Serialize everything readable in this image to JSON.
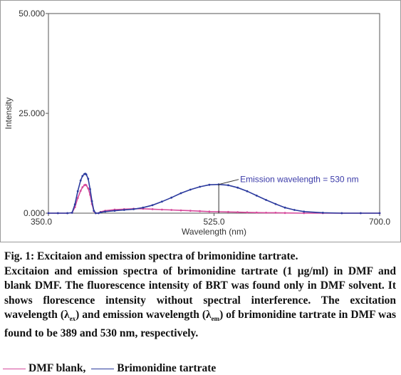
{
  "chart_data": {
    "type": "line",
    "title": "",
    "xlabel": "Wavelength (nm)",
    "ylabel": "Intensity",
    "xlim": [
      350,
      700
    ],
    "ylim": [
      0,
      50
    ],
    "x_ticks": [
      "350.0",
      "525.0",
      "700.0"
    ],
    "y_ticks": [
      "0.000",
      "25.000",
      "50.000"
    ],
    "grid": false,
    "series": [
      {
        "name": "DMF blank",
        "color": "#d64a9c",
        "x": [
          350,
          360,
          370,
          375,
          378,
          381,
          384,
          386,
          388,
          389,
          390,
          392,
          394,
          396,
          398,
          400,
          403,
          405,
          410,
          420,
          430,
          440,
          450,
          460,
          470,
          480,
          490,
          500,
          510,
          520,
          530,
          540,
          550,
          560,
          570,
          580,
          590,
          600,
          620,
          640,
          660,
          680,
          700
        ],
        "y": [
          0,
          0,
          0,
          0.1,
          1.5,
          3.8,
          5.6,
          6.5,
          7.0,
          7.1,
          7.0,
          6.2,
          4.6,
          2.3,
          0.5,
          0,
          0,
          0.3,
          0.6,
          0.9,
          1.0,
          1.1,
          1.1,
          1.0,
          0.9,
          0.8,
          0.7,
          0.6,
          0.5,
          0.4,
          0.35,
          0.3,
          0.25,
          0.2,
          0.15,
          0.1,
          0.1,
          0.05,
          0,
          0,
          0,
          0,
          0
        ]
      },
      {
        "name": "Brimonidine tartrate",
        "color": "#2b3a9e",
        "x": [
          350,
          360,
          370,
          375,
          378,
          381,
          384,
          386,
          388,
          389,
          390,
          392,
          394,
          396,
          398,
          400,
          403,
          405,
          410,
          420,
          430,
          440,
          450,
          460,
          470,
          480,
          490,
          500,
          510,
          520,
          530,
          540,
          550,
          560,
          570,
          580,
          590,
          600,
          610,
          620,
          640,
          660,
          680,
          700
        ],
        "y": [
          0,
          0,
          0,
          0.1,
          2.2,
          5.5,
          8.2,
          9.3,
          9.8,
          9.9,
          9.7,
          8.6,
          6.0,
          3.0,
          0.6,
          0,
          0,
          0.2,
          0.4,
          0.6,
          0.8,
          1.0,
          1.4,
          2.0,
          2.9,
          3.9,
          5.0,
          5.9,
          6.6,
          7.1,
          7.2,
          7.0,
          6.4,
          5.5,
          4.4,
          3.3,
          2.3,
          1.4,
          0.8,
          0.4,
          0.1,
          0,
          0,
          0
        ]
      }
    ],
    "annotations": [
      {
        "text": "Emission wavelength = 530 nm",
        "x": 530,
        "y": 7.2
      }
    ]
  },
  "caption": {
    "title": "Fig. 1: Excitaion and emission spectra of brimonidine tartrate.",
    "body_part1": "Excitaion and emission spectra of brimonidine tartrate (1 μg/ml) in DMF and blank DMF. The fluorescence intensity of BRT was found only in DMF solvent. It shows florescence intensity without spectral interference. The excitation wavelength (λ",
    "sub_ex": "ex",
    "body_part2": ") and emission wavelength (λ",
    "sub_em": "em",
    "body_part3": ") of brimonidine tartrate in DMF was found to be 389 and 530 nm, respectively."
  },
  "legend": {
    "item1": "DMF blank,",
    "item2": "Brimonidine tartrate"
  }
}
